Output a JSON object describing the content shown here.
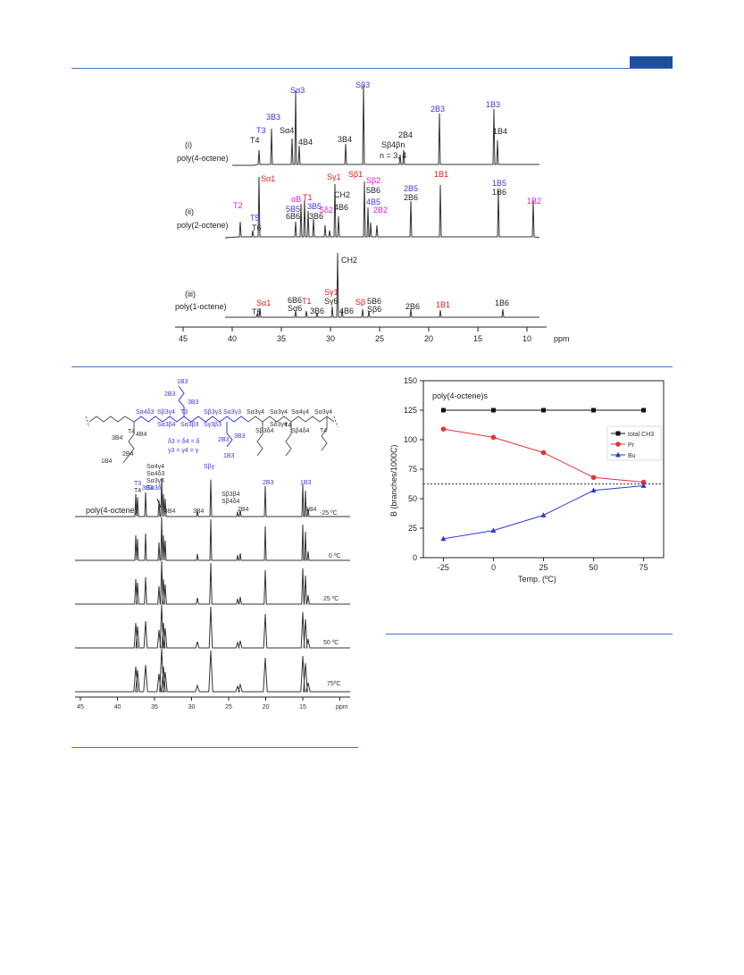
{
  "fig_top": {
    "axis": {
      "ticks": [
        "45",
        "40",
        "35",
        "30",
        "25",
        "20",
        "15",
        "10"
      ],
      "unit": "ppm"
    },
    "traces": [
      {
        "roman": "(i)",
        "name": "poly(4-octene)",
        "labels": {
          "T4": "T4",
          "T3": "T3",
          "3B3": "3B3",
          "Sa4": "Sα4",
          "4B4": "4B4",
          "Sa3": "Sα3",
          "3B4": "3B4",
          "Sb3": "Sβ3",
          "Sb4bn": "Sβ4βn",
          "nval": "n = 3, 4",
          "2B4": "2B4",
          "2B3": "2B3",
          "1B3": "1B3",
          "1B4": "1B4"
        }
      },
      {
        "roman": "(ii)",
        "name": "poly(2-octene)",
        "labels": {
          "T2": "T2",
          "T5": "T5",
          "T6": "T6",
          "Sa1": "Sα1",
          "5B5": "5B5",
          "6B6": "6B6",
          "abT1": "αB",
          "T1": "T1",
          "3B5": "3B5",
          "3B6": "3B6",
          "Sd2": "Sδ2",
          "Sg1": "Sγ1",
          "CH2": "CH2",
          "4B6": "4B6",
          "Sb1": "Sβ1",
          "Sb2": "Sβ2",
          "5B6": "5B6",
          "4B5": "4B5",
          "2B2": "2B2",
          "2B5": "2B5",
          "2B6": "2B6",
          "1B1": "1B1",
          "1B5": "1B5",
          "1B6": "1B6",
          "1B2": "1B2"
        }
      },
      {
        "roman": "(iii)",
        "name": "poly(1-octene)",
        "labels": {
          "CH2": "CH2",
          "Ta": "T6",
          "Sa1": "Sα1",
          "6B6": "6B6",
          "Sa6": "Sα6",
          "T1": "T1",
          "3B6": "3B6",
          "Sg1": "Sγ1",
          "Sg6": "Sγ6",
          "4B6": "4B6",
          "Sb": "Sβ",
          "5B6": "5B6",
          "Sb6": "Sβ6",
          "2B6": "2B6",
          "1B1": "1B1",
          "1B6": "1B6"
        }
      }
    ]
  },
  "fig_bottom_left": {
    "structure": {
      "chain_labels": [
        "Sα4δ3",
        "Sβ3γ4",
        "T4",
        "Sα3β4",
        "T3",
        "Sβ3γ3",
        "Sγ3β3",
        "Sα3γ3",
        "Sα3β3",
        "Sα3γ4",
        "Sα3γ4",
        "Sδ3γ4",
        "Sβ3δ4",
        "Sα4γ4",
        "Sβ4δ4",
        "T4",
        "Sα3γ4",
        "T4"
      ],
      "branch_labels": [
        "1B3",
        "2B3",
        "3B3",
        "3B4",
        "4B4",
        "2B4",
        "1B4",
        "2B3",
        "3B3",
        "1B3"
      ],
      "eq1": "δ3 = δ4 = δ",
      "eq2": "γ3 = γ4 = γ"
    },
    "trace_name": "poly(4-octene)",
    "peak_labels": {
      "T3": "T3",
      "T4": "T4",
      "3B3": "3B3",
      "Sa4d3": "Sα4δ3",
      "Sa3g4": "Sα3γ4",
      "Sa4g4": "Sα4γ4",
      "Sa3d": "Sα3δ",
      "4B4": "4B4",
      "3B4": "3B4",
      "Sbg": "Sβγ",
      "Sbb4": "Sβ3β4",
      "Sbd4": "Sβ4δ4",
      "2B4": "2B4",
      "2B3": "2B3",
      "1B3": "1B3",
      "1B4": "1B4"
    },
    "temperatures": [
      "-25 ºC",
      "0 ºC",
      "25 ºC",
      "50 ºC",
      "75ºC"
    ],
    "axis": {
      "ticks": [
        "45",
        "40",
        "35",
        "30",
        "25",
        "20",
        "15",
        "10"
      ],
      "unit": "ppm"
    }
  },
  "chart_data": {
    "type": "line",
    "title": "poly(4-octene)s",
    "xlabel": "Temp. (ºC)",
    "ylabel": "B (branches/1000C)",
    "x": [
      -25,
      0,
      25,
      50,
      75
    ],
    "xlim": [
      -35,
      85
    ],
    "ylim": [
      0,
      150
    ],
    "yticks": [
      0,
      25,
      50,
      75,
      100,
      125,
      150
    ],
    "xticks": [
      -25,
      0,
      25,
      50,
      75
    ],
    "reference_line": 62.5,
    "legend_placement": "right",
    "series": [
      {
        "name": "total CH3",
        "values": [
          125,
          125,
          125,
          125,
          125
        ],
        "color": "#111111",
        "marker": "square"
      },
      {
        "name": "Pr",
        "values": [
          109,
          102,
          89,
          68,
          64
        ],
        "color": "#e8303a",
        "marker": "circle"
      },
      {
        "name": "Bu",
        "values": [
          16,
          23,
          36,
          57,
          61
        ],
        "color": "#2a3bd6",
        "marker": "triangle"
      }
    ]
  }
}
